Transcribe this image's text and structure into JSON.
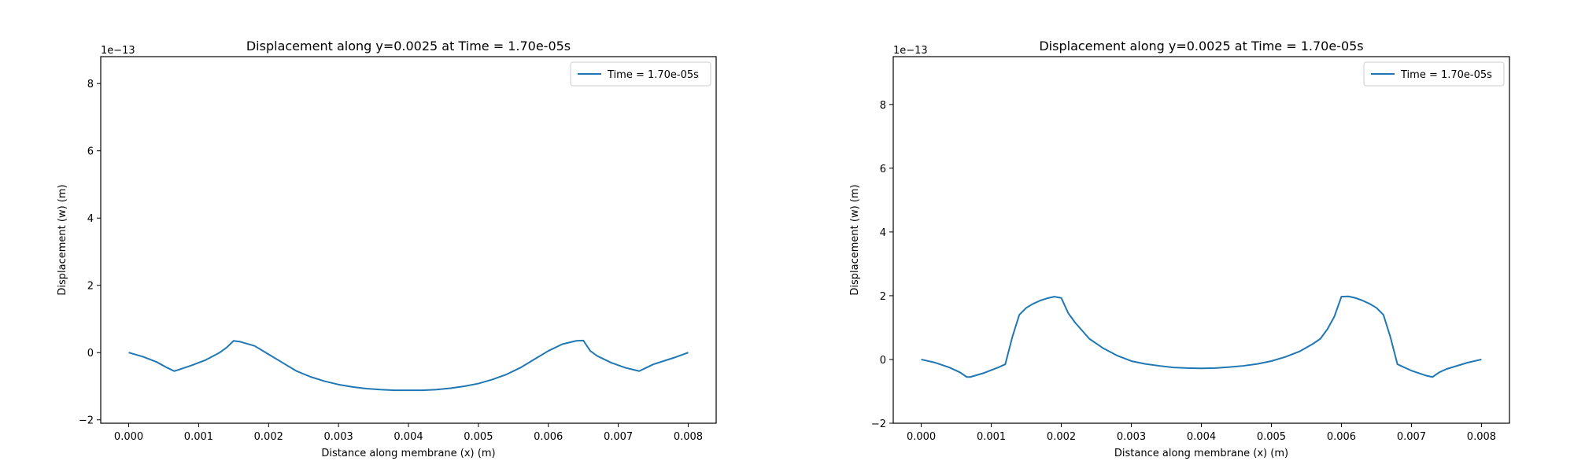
{
  "chart_data": [
    {
      "type": "line",
      "title": "Displacement along y=0.0025 at Time = 1.70e-05s",
      "xlabel": "Distance along membrane (x) (m)",
      "ylabel": "Displacement (w) (m)",
      "offset_text": "1e−13",
      "xlim": [
        -0.0004,
        0.0084
      ],
      "ylim": [
        -2.1,
        8.8
      ],
      "xticks": [
        0.0,
        0.001,
        0.002,
        0.003,
        0.004,
        0.005,
        0.006,
        0.007,
        0.008
      ],
      "xtick_labels": [
        "0.000",
        "0.001",
        "0.002",
        "0.003",
        "0.004",
        "0.005",
        "0.006",
        "0.007",
        "0.008"
      ],
      "yticks": [
        -2,
        0,
        2,
        4,
        6,
        8
      ],
      "ytick_labels": [
        "−2",
        "0",
        "2",
        "4",
        "6",
        "8"
      ],
      "grid": false,
      "legend_position": "top-right",
      "series": [
        {
          "name": "Time = 1.70e-05s",
          "color": "#1f77b4",
          "x": [
            0.0,
            0.0002,
            0.0004,
            0.00055,
            0.00065,
            0.0007,
            0.0009,
            0.0011,
            0.0013,
            0.0014,
            0.0015,
            0.0016,
            0.0018,
            0.002,
            0.0022,
            0.0024,
            0.0026,
            0.0028,
            0.003,
            0.0032,
            0.0034,
            0.0036,
            0.0038,
            0.004,
            0.0042,
            0.0044,
            0.0046,
            0.0048,
            0.005,
            0.0052,
            0.0054,
            0.0056,
            0.0058,
            0.006,
            0.0062,
            0.0064,
            0.0065,
            0.0066,
            0.0067,
            0.0069,
            0.0071,
            0.0073,
            0.0074,
            0.0075,
            0.0078,
            0.008
          ],
          "y": [
            0.0,
            -0.12,
            -0.28,
            -0.45,
            -0.55,
            -0.52,
            -0.38,
            -0.22,
            0.0,
            0.15,
            0.35,
            0.32,
            0.2,
            -0.05,
            -0.3,
            -0.55,
            -0.72,
            -0.85,
            -0.95,
            -1.02,
            -1.07,
            -1.1,
            -1.12,
            -1.12,
            -1.12,
            -1.1,
            -1.06,
            -1.0,
            -0.92,
            -0.8,
            -0.65,
            -0.45,
            -0.2,
            0.05,
            0.25,
            0.35,
            0.36,
            0.05,
            -0.1,
            -0.3,
            -0.45,
            -0.55,
            -0.45,
            -0.35,
            -0.15,
            0.0
          ]
        }
      ]
    },
    {
      "type": "line",
      "title": "Displacement along y=0.0025 at Time = 1.70e-05s",
      "xlabel": "Distance along membrane (x) (m)",
      "ylabel": "Displacement (w) (m)",
      "offset_text": "1e−13",
      "xlim": [
        -0.0004,
        0.0084
      ],
      "ylim": [
        -2.0,
        9.5
      ],
      "xticks": [
        0.0,
        0.001,
        0.002,
        0.003,
        0.004,
        0.005,
        0.006,
        0.007,
        0.008
      ],
      "xtick_labels": [
        "0.000",
        "0.001",
        "0.002",
        "0.003",
        "0.004",
        "0.005",
        "0.006",
        "0.007",
        "0.008"
      ],
      "yticks": [
        -2,
        0,
        2,
        4,
        6,
        8
      ],
      "ytick_labels": [
        "−2",
        "0",
        "2",
        "4",
        "6",
        "8"
      ],
      "grid": false,
      "legend_position": "top-right",
      "series": [
        {
          "name": "Time = 1.70e-05s",
          "color": "#1f77b4",
          "x": [
            0.0,
            0.0002,
            0.0004,
            0.00055,
            0.00065,
            0.0007,
            0.0009,
            0.0011,
            0.0012,
            0.0013,
            0.0014,
            0.0015,
            0.0016,
            0.0017,
            0.0018,
            0.0019,
            0.002,
            0.0021,
            0.0022,
            0.0023,
            0.0024,
            0.0026,
            0.0028,
            0.003,
            0.0032,
            0.0034,
            0.0036,
            0.0038,
            0.004,
            0.0042,
            0.0044,
            0.0046,
            0.0048,
            0.005,
            0.0052,
            0.0054,
            0.0056,
            0.0057,
            0.0058,
            0.0059,
            0.006,
            0.0061,
            0.0062,
            0.0063,
            0.0064,
            0.0065,
            0.0066,
            0.0067,
            0.0068,
            0.007,
            0.0072,
            0.0073,
            0.0074,
            0.0075,
            0.0078,
            0.008
          ],
          "y": [
            0.0,
            -0.1,
            -0.25,
            -0.4,
            -0.55,
            -0.55,
            -0.42,
            -0.25,
            -0.15,
            0.7,
            1.4,
            1.62,
            1.75,
            1.85,
            1.92,
            1.97,
            1.93,
            1.45,
            1.15,
            0.9,
            0.65,
            0.35,
            0.12,
            -0.05,
            -0.14,
            -0.2,
            -0.25,
            -0.27,
            -0.28,
            -0.27,
            -0.24,
            -0.2,
            -0.14,
            -0.05,
            0.08,
            0.25,
            0.5,
            0.65,
            0.95,
            1.35,
            1.97,
            1.98,
            1.93,
            1.85,
            1.75,
            1.62,
            1.4,
            0.7,
            -0.15,
            -0.35,
            -0.5,
            -0.55,
            -0.4,
            -0.3,
            -0.1,
            0.0
          ]
        }
      ]
    }
  ]
}
